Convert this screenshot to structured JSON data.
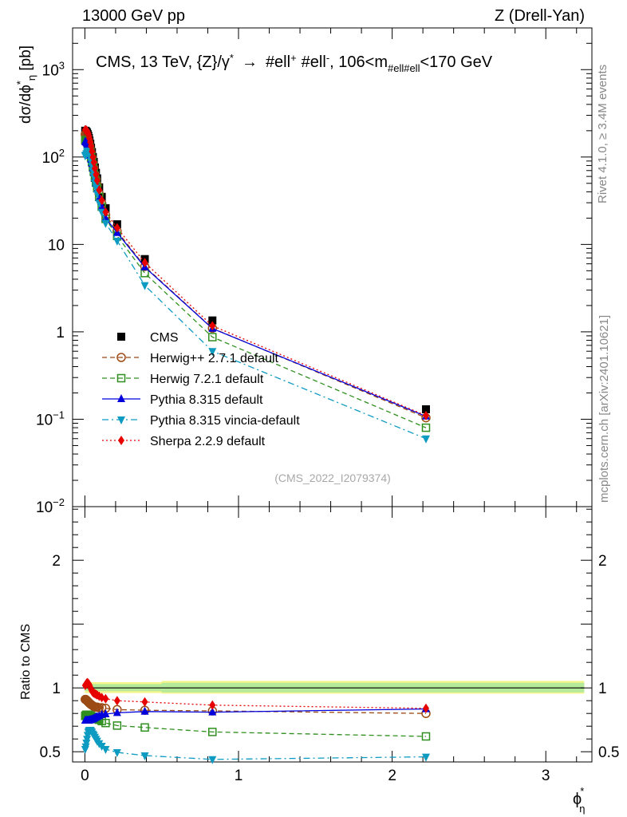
{
  "header": {
    "left_title": "13000 GeV pp",
    "right_title": "Z (Drell-Yan)"
  },
  "side_labels": {
    "rivet": "Rivet 4.1.0, ≥ 3.4M events",
    "source": "mcplots.cern.ch [arXiv:2401.10621]"
  },
  "watermark": "(CMS_2022_I2079374)",
  "legend_location": "lower-left",
  "chart_data": [
    {
      "type": "scatter",
      "panel": "main",
      "title": "CMS, 13 TeV, {Z}/γ* → #ell⁺ #ell⁻, 106<m#ell#ell<170 GeV",
      "title_parts": {
        "main": "CMS, 13 TeV, {Z}/γ",
        "star": "*",
        "arrow": "→",
        "lep1": "#ell",
        "plus": "+",
        "lep2": "#ell",
        "minus": "-",
        "mass_left": ", 106<m",
        "mass_sub": "#ell#ell",
        "mass_right": "<170 GeV"
      },
      "ylabel": "dσ/dϕ*η [pb]",
      "ylabel_parts": {
        "main": "dσ/dϕ",
        "sup": "*",
        "sub": "η",
        "unit": " [pb]"
      },
      "yscale": "log",
      "ylim": [
        0.01,
        3000
      ],
      "xlim": [
        -0.08,
        3.3
      ],
      "y_ticks": [
        {
          "value": 0.01,
          "base": "10",
          "exp": "−2",
          "plain": ""
        },
        {
          "value": 0.1,
          "base": "10",
          "exp": "−1",
          "plain": ""
        },
        {
          "value": 1,
          "base": "",
          "exp": "",
          "plain": "1"
        },
        {
          "value": 10,
          "base": "",
          "exp": "",
          "plain": "10"
        },
        {
          "value": 100,
          "base": "10",
          "exp": "2",
          "plain": ""
        },
        {
          "value": 1000,
          "base": "10",
          "exp": "3",
          "plain": ""
        }
      ],
      "x": [
        0.002,
        0.006,
        0.01,
        0.014,
        0.018,
        0.022,
        0.026,
        0.03,
        0.035,
        0.04,
        0.046,
        0.052,
        0.058,
        0.065,
        0.072,
        0.08,
        0.093,
        0.11,
        0.135,
        0.21,
        0.39,
        0.83,
        2.22
      ],
      "series": [
        {
          "name": "CMS",
          "color": "#000000",
          "marker": "square",
          "line": "none",
          "values": [
            200,
            198,
            195,
            190,
            183,
            175,
            165,
            154,
            142,
            128,
            114,
            100,
            88,
            76,
            66,
            57,
            45,
            35,
            26,
            17,
            6.8,
            1.35,
            0.13
          ]
        },
        {
          "name": "Herwig++ 2.7.1 default",
          "color": "#9b4a14",
          "marker": "open-circle",
          "line": "dashed",
          "values": [
            182,
            180,
            176,
            170,
            163,
            155,
            145,
            135,
            123,
            111,
            98,
            85,
            75,
            64,
            56,
            48,
            38,
            29.5,
            21.8,
            14.2,
            5.6,
            1.1,
            0.104
          ]
        },
        {
          "name": "Herwig 7.2.1 default",
          "color": "#2f8f1e",
          "marker": "open-square",
          "line": "dashed",
          "values": [
            156,
            155,
            153,
            149,
            143,
            137,
            128,
            120,
            110,
            99,
            88,
            77,
            68,
            58,
            51,
            44,
            35,
            27,
            19.6,
            12.5,
            4.7,
            0.87,
            0.08
          ]
        },
        {
          "name": "Pythia 8.315 default",
          "color": "#0000dd",
          "marker": "triangle-up",
          "line": "solid",
          "values": [
            150,
            148,
            145,
            141,
            136,
            129,
            121,
            113,
            104,
            94,
            84,
            74,
            66,
            57,
            50,
            43,
            34,
            27,
            20,
            13.6,
            5.5,
            1.09,
            0.108
          ]
        },
        {
          "name": "Pythia 8.315 vincia-default",
          "color": "#0e9bc2",
          "marker": "triangle-down",
          "line": "dashdot",
          "values": [
            104,
            106,
            110,
            115,
            118,
            118,
            113,
            106,
            98,
            89,
            79,
            69,
            60,
            51,
            45,
            38,
            30,
            23.5,
            17.5,
            11,
            3.4,
            0.6,
            0.06
          ]
        },
        {
          "name": "Sherpa 2.2.9 default",
          "color": "#e60000",
          "marker": "diamond",
          "line": "dotted",
          "values": [
            205,
            204,
            203,
            199,
            193,
            185,
            175,
            163,
            148,
            133,
            116,
            100,
            87,
            74,
            63,
            54,
            42,
            32,
            23.5,
            15.5,
            6.2,
            1.17,
            0.11
          ]
        }
      ]
    },
    {
      "type": "line",
      "panel": "ratio",
      "ylabel": "Ratio to CMS",
      "xlabel": "ϕ*η",
      "xlabel_parts": {
        "main": "ϕ",
        "sup": "*",
        "sub": "η"
      },
      "ylim": [
        0.42,
        2.42
      ],
      "xlim": [
        -0.08,
        3.3
      ],
      "y_ticks": [
        0.5,
        1,
        2
      ],
      "y_tick_labels": [
        "0.5",
        "1",
        "2"
      ],
      "x_ticks": [
        0,
        1,
        2,
        3
      ],
      "x_tick_labels": [
        "0",
        "1",
        "2",
        "3"
      ],
      "reference_line": 1.0,
      "uncertainty_band_inner": [
        {
          "x": 0,
          "lo": 0.975,
          "hi": 1.03
        },
        {
          "x": 0.5,
          "lo": 0.975,
          "hi": 1.03
        },
        {
          "x": 0.5,
          "lo": 0.965,
          "hi": 1.04
        },
        {
          "x": 3.25,
          "lo": 0.965,
          "hi": 1.04
        }
      ],
      "uncertainty_band_outer": [
        {
          "x": 0,
          "lo": 0.96,
          "hi": 1.045
        },
        {
          "x": 0.5,
          "lo": 0.96,
          "hi": 1.045
        },
        {
          "x": 0.5,
          "lo": 0.955,
          "hi": 1.055
        },
        {
          "x": 3.25,
          "lo": 0.955,
          "hi": 1.055
        }
      ],
      "x": [
        0.002,
        0.006,
        0.01,
        0.014,
        0.018,
        0.022,
        0.026,
        0.03,
        0.035,
        0.04,
        0.046,
        0.052,
        0.058,
        0.065,
        0.072,
        0.08,
        0.093,
        0.11,
        0.135,
        0.21,
        0.39,
        0.83,
        2.22
      ],
      "series": [
        {
          "name": "Herwig++ 2.7.1 default",
          "color": "#9b4a14",
          "marker": "open-circle",
          "line": "dashed",
          "values": [
            0.91,
            0.91,
            0.905,
            0.9,
            0.895,
            0.89,
            0.885,
            0.88,
            0.875,
            0.87,
            0.865,
            0.86,
            0.855,
            0.85,
            0.85,
            0.85,
            0.845,
            0.845,
            0.84,
            0.83,
            0.825,
            0.82,
            0.8
          ]
        },
        {
          "name": "Herwig 7.2.1 default",
          "color": "#2f8f1e",
          "marker": "open-square",
          "line": "dashed",
          "values": [
            0.78,
            0.785,
            0.79,
            0.79,
            0.79,
            0.79,
            0.785,
            0.785,
            0.78,
            0.78,
            0.775,
            0.77,
            0.77,
            0.765,
            0.76,
            0.755,
            0.75,
            0.74,
            0.725,
            0.705,
            0.69,
            0.655,
            0.62
          ]
        },
        {
          "name": "Pythia 8.315 default",
          "color": "#0000dd",
          "marker": "triangle-up",
          "line": "solid",
          "values": [
            0.745,
            0.745,
            0.745,
            0.745,
            0.745,
            0.745,
            0.745,
            0.75,
            0.75,
            0.75,
            0.755,
            0.755,
            0.76,
            0.765,
            0.77,
            0.775,
            0.78,
            0.79,
            0.795,
            0.805,
            0.815,
            0.81,
            0.835
          ]
        },
        {
          "name": "Pythia 8.315 vincia-default",
          "color": "#0e9bc2",
          "marker": "triangle-down",
          "line": "dashdot",
          "values": [
            0.52,
            0.54,
            0.57,
            0.6,
            0.63,
            0.655,
            0.665,
            0.67,
            0.67,
            0.665,
            0.655,
            0.64,
            0.63,
            0.615,
            0.6,
            0.585,
            0.565,
            0.545,
            0.52,
            0.495,
            0.47,
            0.44,
            0.46
          ]
        },
        {
          "name": "Sherpa 2.2.9 default",
          "color": "#e60000",
          "marker": "diamond",
          "line": "dotted",
          "values": [
            1.02,
            1.025,
            1.035,
            1.04,
            1.04,
            1.035,
            1.03,
            1.02,
            1.005,
            0.99,
            0.975,
            0.965,
            0.96,
            0.955,
            0.95,
            0.945,
            0.935,
            0.925,
            0.915,
            0.9,
            0.89,
            0.865,
            0.84
          ]
        }
      ]
    }
  ]
}
